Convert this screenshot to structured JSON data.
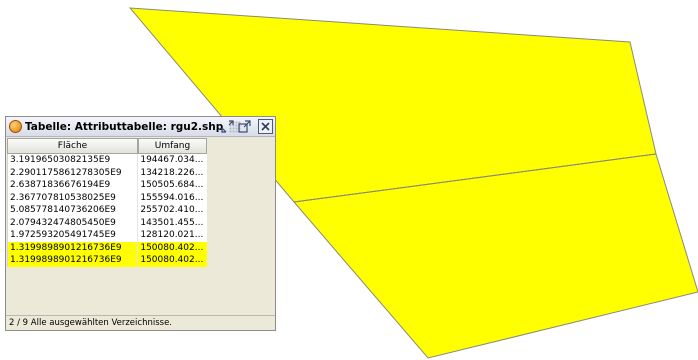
{
  "window": {
    "title": "Tabelle: Attributtabelle: rgu2.shp",
    "title_icon": "orange-globe-icon",
    "buttons": [
      "minimize-icon",
      "maximize-icon",
      "close-icon"
    ]
  },
  "table": {
    "columns": [
      "Fläche",
      "Umfang"
    ],
    "rows": [
      {
        "flaeche": "3.19196503082135E9",
        "umfang": "194467.034...",
        "selected": false
      },
      {
        "flaeche": "2.2901175861278305E9",
        "umfang": "134218.226...",
        "selected": false
      },
      {
        "flaeche": "2.63871836676194E9",
        "umfang": "150505.684...",
        "selected": false
      },
      {
        "flaeche": "2.367707810538025E9",
        "umfang": "155594.016...",
        "selected": false
      },
      {
        "flaeche": "5.085778140736206E9",
        "umfang": "255702.410...",
        "selected": false
      },
      {
        "flaeche": "2.079432474805450E9",
        "umfang": "143501.455...",
        "selected": false
      },
      {
        "flaeche": "1.972593205491745E9",
        "umfang": "128120.021...",
        "selected": false
      },
      {
        "flaeche": "1.3199898901216736E9",
        "umfang": "150080.402...",
        "selected": true
      },
      {
        "flaeche": "1.3199898901216736E9",
        "umfang": "150080.402...",
        "selected": true
      }
    ]
  },
  "status": {
    "text": "2 / 9 Alle ausgewählten Verzeichnisse."
  },
  "colors": {
    "selection": "#ffff00",
    "polygon_fill": "#ffff00",
    "polygon_outline": "#8a8a7a"
  }
}
